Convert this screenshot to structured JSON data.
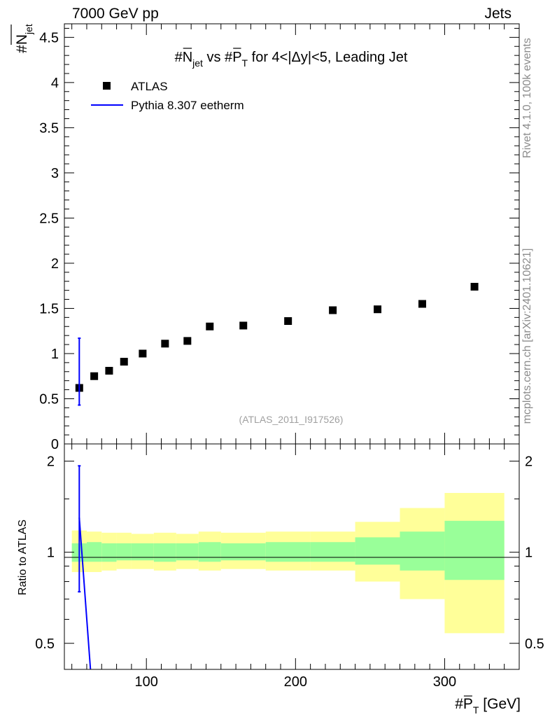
{
  "header": {
    "left": "7000 GeV pp",
    "right": "Jets"
  },
  "side": {
    "rivet": "Rivet 4.1.0,  100k events",
    "mcplots": "mcplots.cern.ch [arXiv:2401.10621]"
  },
  "chart_data": {
    "type": "scatter",
    "title": {
      "prefix": "#",
      "n_main": "N",
      "n_sub": "jet",
      "middle": " vs #",
      "p_main": "P",
      "p_sub": "T",
      "suffix": " for 4<|Δy|<5, Leading Jet"
    },
    "ylabel": {
      "main": "#N",
      "sub": "jet"
    },
    "xlabel": {
      "prefix": "#",
      "main": "P",
      "sub": "T",
      "suffix": " [GeV]"
    },
    "ratio_ylabel": "Ratio to ATLAS",
    "watermark": "(ATLAS_2011_I917526)",
    "legend": [
      {
        "name": "ATLAS",
        "marker": "square",
        "color": "#000000"
      },
      {
        "name": "Pythia 8.307 eetherm",
        "marker": "line",
        "color": "#0000ff"
      }
    ],
    "xlim": [
      45,
      350
    ],
    "ylim": [
      0,
      4.65
    ],
    "ratio_ylim": [
      0.41,
      2.28
    ],
    "x_ticks": [
      100,
      200,
      300
    ],
    "y_ticks": [
      "0",
      "0.5",
      "1",
      "1.5",
      "2",
      "2.5",
      "3",
      "3.5",
      "4",
      "4.5"
    ],
    "ratio_ticks": [
      "0.5",
      "1",
      "2"
    ],
    "bins": [
      {
        "lo": 50,
        "hi": 60
      },
      {
        "lo": 60,
        "hi": 70
      },
      {
        "lo": 70,
        "hi": 80
      },
      {
        "lo": 80,
        "hi": 90
      },
      {
        "lo": 90,
        "hi": 105
      },
      {
        "lo": 105,
        "hi": 120
      },
      {
        "lo": 120,
        "hi": 135
      },
      {
        "lo": 135,
        "hi": 150
      },
      {
        "lo": 150,
        "hi": 180
      },
      {
        "lo": 180,
        "hi": 210
      },
      {
        "lo": 210,
        "hi": 240
      },
      {
        "lo": 240,
        "hi": 270
      },
      {
        "lo": 270,
        "hi": 300
      },
      {
        "lo": 300,
        "hi": 340
      }
    ],
    "atlas": {
      "x": [
        55,
        65,
        75,
        85,
        97.5,
        112.5,
        127.5,
        142.5,
        165,
        195,
        225,
        255,
        285,
        320
      ],
      "y": [
        0.62,
        0.75,
        0.81,
        0.91,
        1.0,
        1.11,
        1.14,
        1.3,
        1.31,
        1.36,
        1.48,
        1.49,
        1.55,
        1.74
      ]
    },
    "pythia": {
      "x": 55,
      "y": 0.8,
      "y_err_low": 0.43,
      "y_err_high": 1.17,
      "ratio": 1.3,
      "ratio_err_low": 0.74,
      "ratio_err_high": 1.93,
      "ratio_line_to": {
        "x": 62.5,
        "y": 0.41
      }
    },
    "ratio_bands": {
      "inner": [
        [
          0.93,
          1.07
        ],
        [
          0.93,
          1.08
        ],
        [
          0.93,
          1.07
        ],
        [
          0.94,
          1.07
        ],
        [
          0.94,
          1.07
        ],
        [
          0.93,
          1.07
        ],
        [
          0.94,
          1.07
        ],
        [
          0.93,
          1.08
        ],
        [
          0.94,
          1.07
        ],
        [
          0.93,
          1.08
        ],
        [
          0.93,
          1.08
        ],
        [
          0.91,
          1.12
        ],
        [
          0.87,
          1.17
        ],
        [
          0.81,
          1.27
        ]
      ],
      "outer": [
        [
          0.86,
          1.18
        ],
        [
          0.86,
          1.17
        ],
        [
          0.87,
          1.16
        ],
        [
          0.88,
          1.16
        ],
        [
          0.88,
          1.15
        ],
        [
          0.87,
          1.16
        ],
        [
          0.88,
          1.15
        ],
        [
          0.87,
          1.17
        ],
        [
          0.88,
          1.16
        ],
        [
          0.87,
          1.17
        ],
        [
          0.87,
          1.17
        ],
        [
          0.8,
          1.26
        ],
        [
          0.7,
          1.4
        ],
        [
          0.54,
          1.57
        ]
      ]
    },
    "colors": {
      "inner_band": "#99ff99",
      "outer_band": "#ffff99",
      "data": "#000000",
      "mc": "#0000ff"
    }
  }
}
